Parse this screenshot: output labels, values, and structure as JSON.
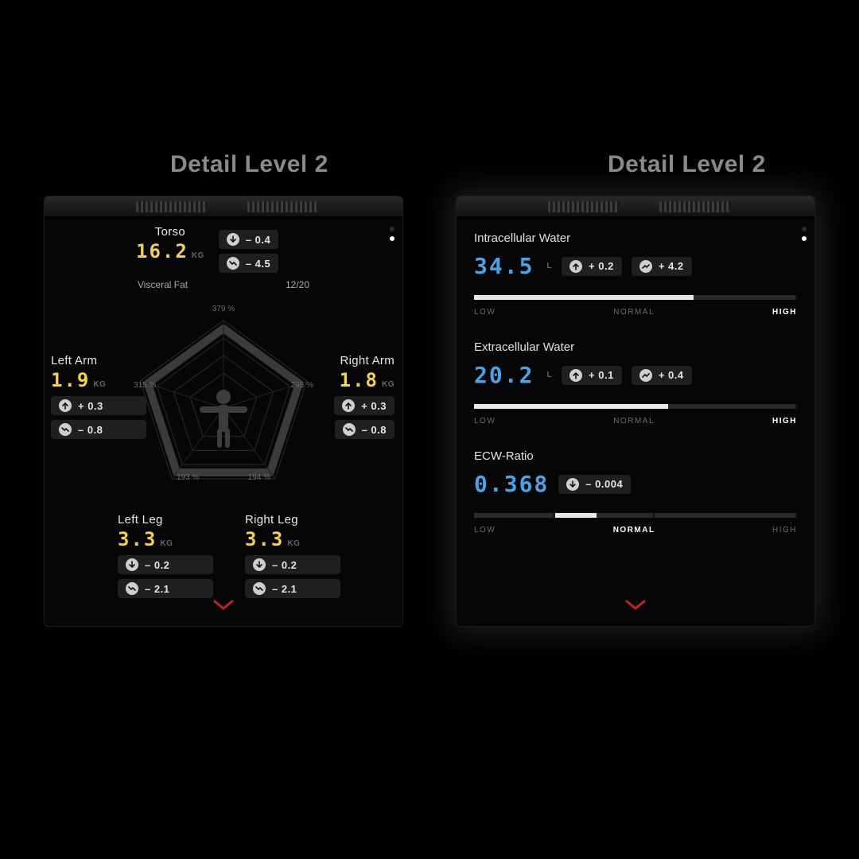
{
  "colors": {
    "background": "#000000",
    "card_bg": "#060606",
    "pill_bg": "#1f1f1f",
    "text_primary": "#e8e8e8",
    "text_muted": "#8a8a8a",
    "digit_yellow": "#f3d24b",
    "digit_blue": "#4aa3e6",
    "chevron": "#c32121",
    "bar_track": "#161616",
    "bar_seg": "#2b2b2b",
    "bar_fill": "#e8e8e8"
  },
  "panels": {
    "left": {
      "title": "Detail Level 2",
      "torso": {
        "label": "Torso",
        "value": "16.2",
        "unit": "KG",
        "delta1": {
          "icon": "down",
          "text": "– 0.4"
        },
        "delta2": {
          "icon": "trend-down",
          "text": "– 4.5"
        },
        "visceral_label": "Visceral Fat",
        "visceral_value": "12/20"
      },
      "left_arm": {
        "label": "Left Arm",
        "value": "1.9",
        "unit": "KG",
        "delta1": {
          "icon": "up",
          "text": "+ 0.3"
        },
        "delta2": {
          "icon": "trend-down",
          "text": "– 0.8"
        }
      },
      "right_arm": {
        "label": "Right Arm",
        "value": "1.8",
        "unit": "KG",
        "delta1": {
          "icon": "up",
          "text": "+ 0.3"
        },
        "delta2": {
          "icon": "trend-down",
          "text": "– 0.8"
        }
      },
      "left_leg": {
        "label": "Left Leg",
        "value": "3.3",
        "unit": "KG",
        "delta1": {
          "icon": "down",
          "text": "– 0.2"
        },
        "delta2": {
          "icon": "trend-down",
          "text": "– 2.1"
        }
      },
      "right_leg": {
        "label": "Right Leg",
        "value": "3.3",
        "unit": "KG",
        "delta1": {
          "icon": "down",
          "text": "– 0.2"
        },
        "delta2": {
          "icon": "trend-down",
          "text": "– 2.1"
        }
      },
      "radar": {
        "size": 260,
        "rings": 5,
        "percent_labels": {
          "top": "379 %",
          "upper_left": "315 %",
          "upper_right": "295 %",
          "lower_left": "193 %",
          "lower_right": "194 %"
        },
        "ring_color": "#2a2a2a",
        "active_ring_color": "#3b3b3b",
        "person_color": "#3d3d3d"
      }
    },
    "right": {
      "title": "Detail Level 2",
      "metrics": [
        {
          "label": "Intracellular Water",
          "value": "34.5",
          "unit": "L",
          "deltas": [
            {
              "icon": "up",
              "text": "+ 0.2"
            },
            {
              "icon": "trend-up",
              "text": "+ 4.2"
            }
          ],
          "zones": [
            "LOW",
            "NORMAL",
            "HIGH"
          ],
          "active_zone": 2,
          "bar": {
            "seg_bounds_pct": [
              0,
              25,
              56,
              100
            ],
            "fill_start_pct": 0,
            "fill_end_pct": 68
          }
        },
        {
          "label": "Extracellular Water",
          "value": "20.2",
          "unit": "L",
          "deltas": [
            {
              "icon": "up",
              "text": "+ 0.1"
            },
            {
              "icon": "trend-up",
              "text": "+ 0.4"
            }
          ],
          "zones": [
            "LOW",
            "NORMAL",
            "HIGH"
          ],
          "active_zone": 2,
          "bar": {
            "seg_bounds_pct": [
              0,
              25,
              56,
              100
            ],
            "fill_start_pct": 0,
            "fill_end_pct": 60
          }
        },
        {
          "label": "ECW-Ratio",
          "value": "0.368",
          "unit": "",
          "deltas": [
            {
              "icon": "down",
              "text": "– 0.004"
            }
          ],
          "zones": [
            "LOW",
            "NORMAL",
            "HIGH"
          ],
          "active_zone": 1,
          "bar": {
            "seg_bounds_pct": [
              0,
              25,
              56,
              100
            ],
            "fill_start_pct": 25,
            "fill_end_pct": 38
          }
        }
      ]
    }
  }
}
